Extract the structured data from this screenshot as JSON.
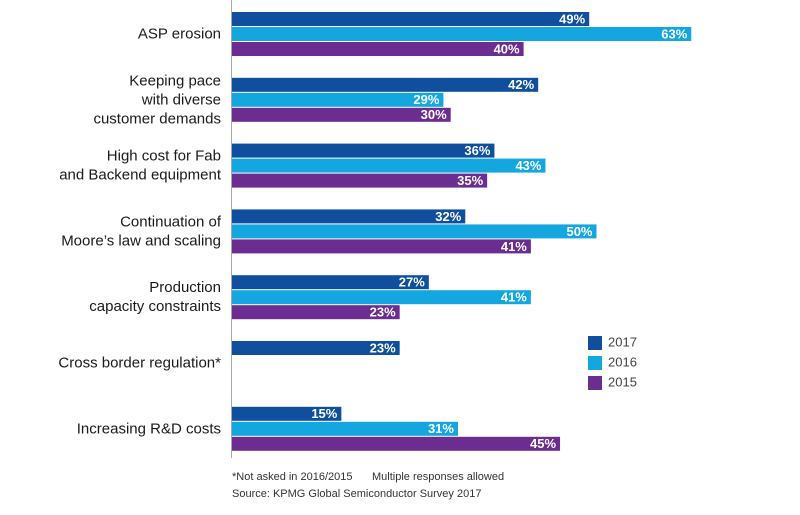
{
  "chart_data": {
    "type": "hbar",
    "categories": [
      [
        "ASP erosion"
      ],
      [
        "Keeping pace",
        "with diverse",
        "customer demands"
      ],
      [
        "High cost for Fab",
        "and Backend equipment"
      ],
      [
        "Continuation of",
        "Moore’s law and scaling"
      ],
      [
        "Production",
        "capacity constraints"
      ],
      [
        "Cross border regulation*"
      ],
      [
        "Increasing R&D costs"
      ]
    ],
    "series": [
      {
        "name": "2017",
        "color": "#0f4f9e",
        "values": [
          49,
          42,
          36,
          32,
          27,
          23,
          15
        ],
        "value_labels": [
          "49%",
          "42%",
          "36%",
          "32%",
          "27%",
          "23%",
          "15%"
        ]
      },
      {
        "name": "2016",
        "color": "#14a6df",
        "values": [
          63,
          29,
          43,
          50,
          41,
          null,
          31
        ],
        "value_labels": [
          "63%",
          "29%",
          "43%",
          "50%",
          "41%",
          null,
          "31%"
        ]
      },
      {
        "name": "2015",
        "color": "#6b2d8f",
        "values": [
          40,
          30,
          35,
          41,
          23,
          null,
          45
        ],
        "value_labels": [
          "40%",
          "30%",
          "35%",
          "41%",
          "23%",
          null,
          "45%"
        ]
      }
    ],
    "notes": [
      "*Not asked in 2016/2015",
      "Multiple responses allowed",
      "Source: KPMG Global Semiconductor Survey 2017"
    ]
  }
}
